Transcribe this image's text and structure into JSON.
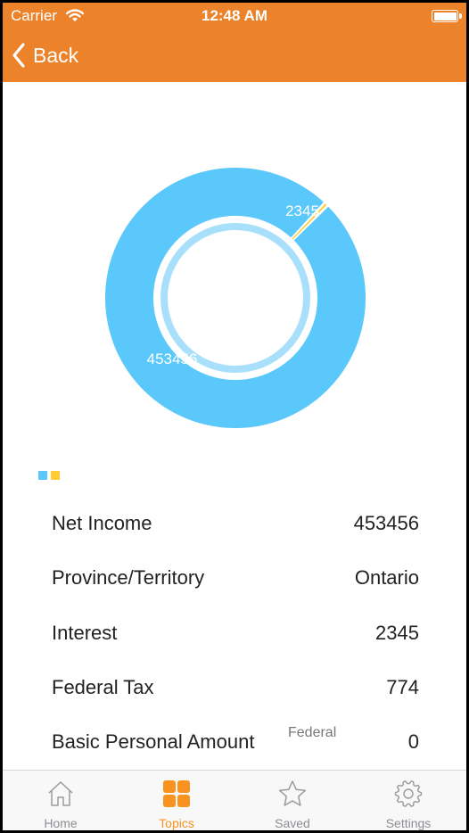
{
  "status_bar": {
    "carrier": "Carrier",
    "time": "12:48 AM"
  },
  "nav": {
    "back_label": "Back"
  },
  "chart_data": {
    "type": "pie",
    "variant": "donut",
    "values": [
      453456,
      2345
    ],
    "labels": [
      "453456",
      "2345"
    ],
    "colors": [
      "#5ac8fa",
      "#ffcc33"
    ]
  },
  "legend": {
    "colors": [
      "#5ac8fa",
      "#ffcc33"
    ]
  },
  "rows": [
    {
      "label": "Net Income",
      "value": "453456"
    },
    {
      "label": "Province/Territory",
      "value": "Ontario"
    },
    {
      "label": "Interest",
      "value": "2345"
    },
    {
      "label": "Federal Tax",
      "value": "774"
    },
    {
      "label": "Basic Personal Amount",
      "sub": "Federal",
      "value": "0"
    }
  ],
  "tabs": [
    {
      "label": "Home",
      "icon": "home-icon"
    },
    {
      "label": "Topics",
      "icon": "grid-icon",
      "active": true
    },
    {
      "label": "Saved",
      "icon": "star-icon"
    },
    {
      "label": "Settings",
      "icon": "gear-icon"
    }
  ],
  "colors": {
    "accent": "#ec832a",
    "tab_active": "#f7931e",
    "tab_inactive": "#8e8e93"
  }
}
